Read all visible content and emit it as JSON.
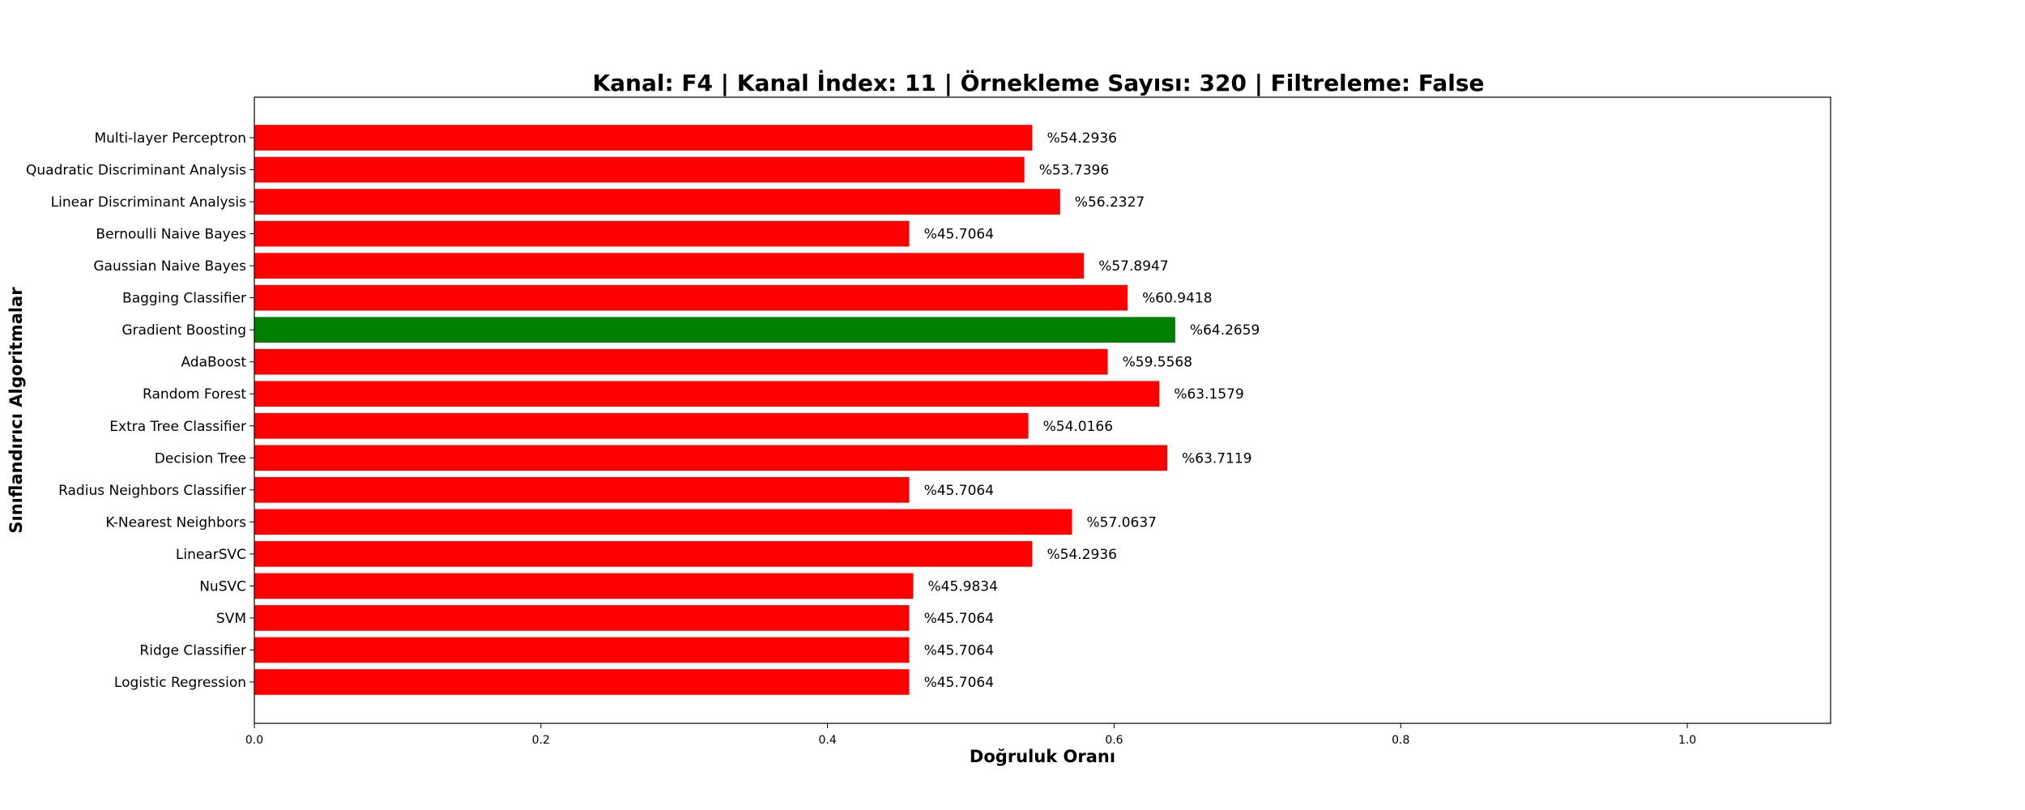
{
  "chart_data": {
    "type": "bar",
    "orientation": "horizontal",
    "title": "Kanal: F4 | Kanal İndex: 11 | Örnekleme Sayısı: 320 | Filtreleme: False",
    "xlabel": "Doğruluk Oranı",
    "ylabel": "Sınıflandırıcı Algoritmalar",
    "xlim": [
      0,
      1.1
    ],
    "x_ticks": [
      0.0,
      0.2,
      0.4,
      0.6,
      0.8,
      1.0
    ],
    "x_tick_labels": [
      "0.0",
      "0.2",
      "0.4",
      "0.6",
      "0.8",
      "1.0"
    ],
    "grid": false,
    "categories": [
      "Logistic Regression",
      "Ridge Classifier",
      "SVM",
      "NuSVC",
      "LinearSVC",
      "K-Nearest Neighbors",
      "Radius Neighbors Classifier",
      "Decision Tree",
      "Extra Tree Classifier",
      "Random Forest",
      "AdaBoost",
      "Gradient Boosting",
      "Bagging Classifier",
      "Gaussian Naive Bayes",
      "Bernoulli Naive Bayes",
      "Linear Discriminant Analysis",
      "Quadratic Discriminant Analysis",
      "Multi-layer Perceptron"
    ],
    "values": [
      0.457064,
      0.457064,
      0.457064,
      0.459834,
      0.542936,
      0.570637,
      0.457064,
      0.637119,
      0.540166,
      0.631579,
      0.595568,
      0.642659,
      0.609418,
      0.578947,
      0.457064,
      0.562327,
      0.537396,
      0.542936
    ],
    "data_labels": [
      "%45.7064",
      "%45.7064",
      "%45.7064",
      "%45.9834",
      "%54.2936",
      "%57.0637",
      "%45.7064",
      "%63.7119",
      "%54.0166",
      "%63.1579",
      "%59.5568",
      "%64.2659",
      "%60.9418",
      "%57.8947",
      "%45.7064",
      "%56.2327",
      "%53.7396",
      "%54.2936"
    ],
    "colors": {
      "default": "#ff0000",
      "highlight": "#008000"
    },
    "highlight_category": "Gradient Boosting"
  }
}
